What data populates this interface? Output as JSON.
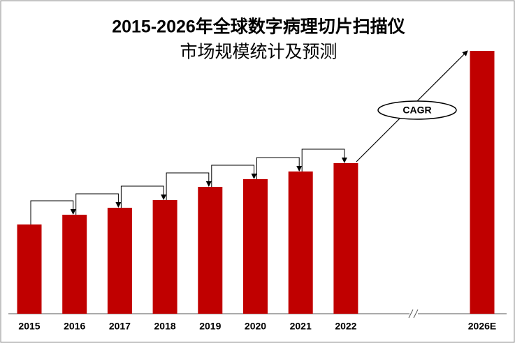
{
  "chart_data": {
    "type": "bar",
    "title": "2015-2026年全球数字病理切片扫描仪",
    "subtitle": "市场规模统计及预测",
    "categories": [
      "2015",
      "2016",
      "2017",
      "2018",
      "2019",
      "2020",
      "2021",
      "2022",
      "2026E"
    ],
    "values": [
      128,
      142,
      152,
      163,
      182,
      193,
      204,
      216,
      377
    ],
    "color": "#c00000",
    "ylim": [
      0,
      400
    ],
    "annotation": "CAGR"
  }
}
